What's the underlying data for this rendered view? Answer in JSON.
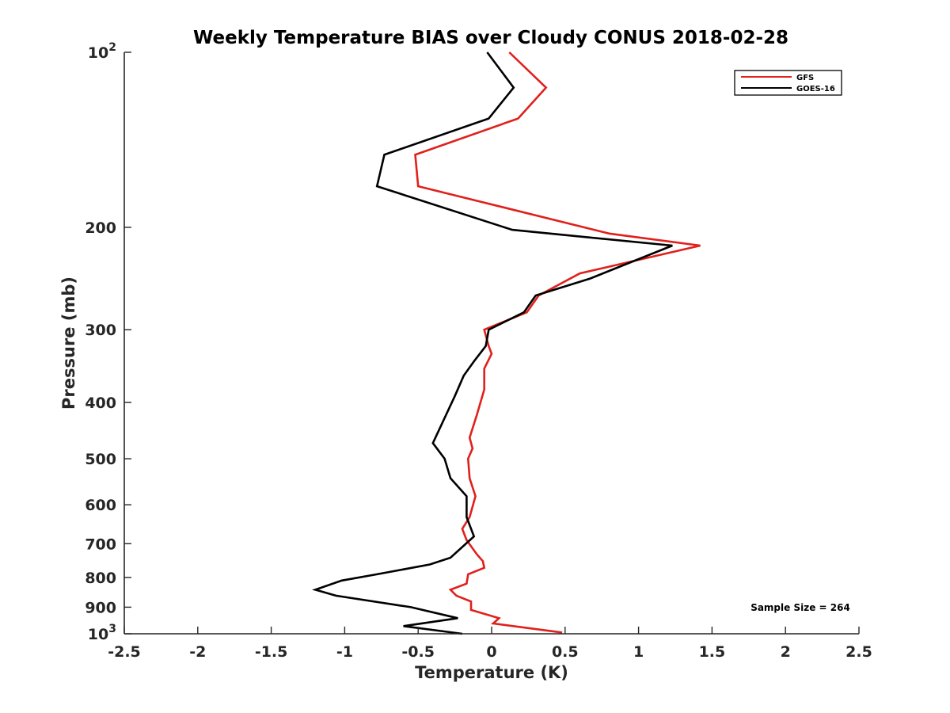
{
  "chart_data": {
    "type": "line",
    "title": "Weekly Temperature BIAS over Cloudy CONUS 2018-02-28",
    "xlabel": "Temperature (K)",
    "ylabel": "Pressure (mb)",
    "xlim": [
      -2.5,
      2.5
    ],
    "ylim": [
      100,
      1000
    ],
    "y_scale": "log",
    "y_reversed": true,
    "grid": false,
    "legend_position": "top-right",
    "x_ticks": [
      "-2.5",
      "-2",
      "-1.5",
      "-1",
      "-0.5",
      "0",
      "0.5",
      "1",
      "1.5",
      "2",
      "2.5"
    ],
    "y_ticks": [
      {
        "value": 100,
        "base": "10",
        "exp": "2"
      },
      {
        "value": 200,
        "base": "200",
        "exp": ""
      },
      {
        "value": 300,
        "base": "300",
        "exp": ""
      },
      {
        "value": 400,
        "base": "400",
        "exp": ""
      },
      {
        "value": 500,
        "base": "500",
        "exp": ""
      },
      {
        "value": 600,
        "base": "600",
        "exp": ""
      },
      {
        "value": 700,
        "base": "700",
        "exp": ""
      },
      {
        "value": 800,
        "base": "800",
        "exp": ""
      },
      {
        "value": 900,
        "base": "900",
        "exp": ""
      },
      {
        "value": 1000,
        "base": "10",
        "exp": "3"
      }
    ],
    "annotation": "Sample Size = 264",
    "series": [
      {
        "name": "GFS",
        "color": "#e0201b",
        "points": [
          [
            0.12,
            100
          ],
          [
            0.37,
            115
          ],
          [
            0.18,
            130
          ],
          [
            -0.52,
            150
          ],
          [
            -0.5,
            170
          ],
          [
            0.8,
            205
          ],
          [
            1.42,
            215
          ],
          [
            0.6,
            240
          ],
          [
            0.32,
            262
          ],
          [
            0.24,
            280
          ],
          [
            -0.05,
            300
          ],
          [
            -0.02,
            320
          ],
          [
            0.0,
            330
          ],
          [
            -0.05,
            350
          ],
          [
            -0.05,
            380
          ],
          [
            -0.1,
            420
          ],
          [
            -0.15,
            460
          ],
          [
            -0.13,
            480
          ],
          [
            -0.16,
            500
          ],
          [
            -0.15,
            540
          ],
          [
            -0.11,
            580
          ],
          [
            -0.15,
            630
          ],
          [
            -0.2,
            660
          ],
          [
            -0.17,
            690
          ],
          [
            -0.1,
            730
          ],
          [
            -0.06,
            750
          ],
          [
            -0.05,
            770
          ],
          [
            -0.16,
            790
          ],
          [
            -0.17,
            820
          ],
          [
            -0.28,
            840
          ],
          [
            -0.24,
            860
          ],
          [
            -0.14,
            880
          ],
          [
            -0.14,
            910
          ],
          [
            0.05,
            940
          ],
          [
            0.01,
            960
          ],
          [
            0.48,
            995
          ]
        ]
      },
      {
        "name": "GOES-16",
        "color": "#000000",
        "points": [
          [
            -0.03,
            100
          ],
          [
            0.15,
            115
          ],
          [
            -0.02,
            130
          ],
          [
            -0.73,
            150
          ],
          [
            -0.78,
            170
          ],
          [
            0.14,
            202
          ],
          [
            1.23,
            215
          ],
          [
            0.67,
            245
          ],
          [
            0.3,
            262
          ],
          [
            0.22,
            280
          ],
          [
            -0.02,
            300
          ],
          [
            -0.04,
            320
          ],
          [
            -0.12,
            340
          ],
          [
            -0.19,
            360
          ],
          [
            -0.25,
            390
          ],
          [
            -0.4,
            470
          ],
          [
            -0.32,
            500
          ],
          [
            -0.28,
            540
          ],
          [
            -0.17,
            580
          ],
          [
            -0.17,
            630
          ],
          [
            -0.12,
            680
          ],
          [
            -0.28,
            740
          ],
          [
            -0.42,
            760
          ],
          [
            -0.78,
            790
          ],
          [
            -1.02,
            810
          ],
          [
            -1.2,
            840
          ],
          [
            -1.06,
            860
          ],
          [
            -0.55,
            900
          ],
          [
            -0.23,
            940
          ],
          [
            -0.6,
            970
          ],
          [
            -0.2,
            1000
          ]
        ]
      }
    ]
  }
}
